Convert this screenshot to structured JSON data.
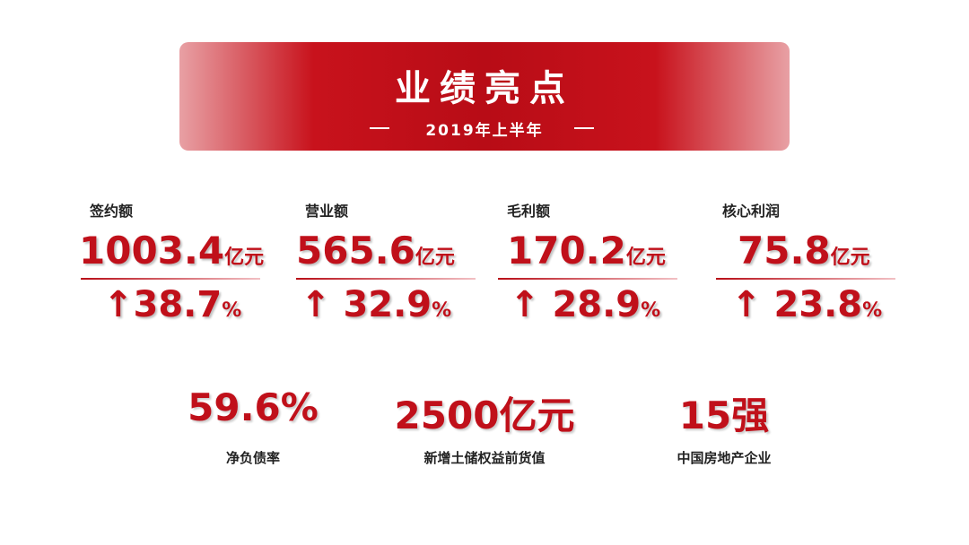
{
  "header": {
    "title": "业绩亮点",
    "subtitle": "2019年上半年"
  },
  "metrics": [
    {
      "label": "签约额",
      "value": "1003.4",
      "unit": "亿元",
      "change": "↑38.7",
      "change_unit": "%"
    },
    {
      "label": "营业额",
      "value": "565.6",
      "unit": "亿元",
      "change": "↑ 32.9",
      "change_unit": "%"
    },
    {
      "label": "毛利额",
      "value": "170.2",
      "unit": "亿元",
      "change": "↑ 28.9",
      "change_unit": "%"
    },
    {
      "label": "核心利润",
      "value": "75.8",
      "unit": "亿元",
      "change": "↑ 23.8",
      "change_unit": "%"
    }
  ],
  "highlights": [
    {
      "value": "59.6%",
      "label": "净负债率"
    },
    {
      "value": "2500亿元",
      "label": "新增土储权益前货值"
    },
    {
      "value": "15强",
      "label": "中国房地产企业"
    }
  ]
}
